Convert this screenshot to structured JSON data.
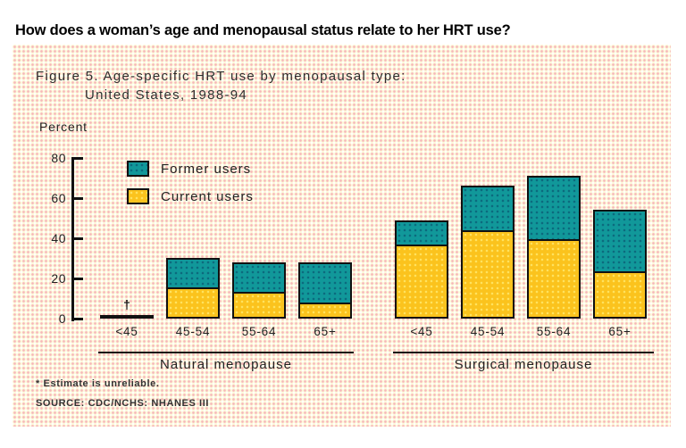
{
  "page": {
    "heading": "How does a woman’s age and menopausal status relate to her HRT use?"
  },
  "figure": {
    "title_line1": "Figure 5.  Age-specific HRT use by menopausal type:",
    "title_line2": "United States, 1988-94",
    "y_axis_title": "Percent",
    "unreliable_marker": "†",
    "footnote": "* Estimate is unreliable.",
    "source": "SOURCE: CDC/NCHS: NHANES III",
    "legend": [
      {
        "label": "Former users",
        "color": "#11989a"
      },
      {
        "label": "Current users",
        "color": "#fbc31d"
      }
    ],
    "colors": {
      "former_fill": "#11989a",
      "former_dot": "#0c6b7e",
      "current_fill": "#fbc31d",
      "current_dot": "#ffe25e",
      "box_background": "#fdf7d8",
      "box_dot": "#f6b2b8",
      "axis": "#111111"
    }
  },
  "chart_data": {
    "type": "bar",
    "stacked": true,
    "title": "Figure 5. Age-specific HRT use by menopausal type: United States, 1988-94",
    "ylabel": "Percent",
    "ylim": [
      0,
      80
    ],
    "yticks": [
      0,
      20,
      40,
      60,
      80
    ],
    "grid": false,
    "legend_position": "upper-left",
    "legend_entries": [
      "Former users",
      "Current users"
    ],
    "groups": [
      {
        "label": "Natural menopause",
        "categories": [
          "<45",
          "45-54",
          "55-64",
          "65+"
        ],
        "series": [
          {
            "name": "Current users",
            "values": [
              null,
              15,
              13,
              7
            ]
          },
          {
            "name": "Former users",
            "values": [
              null,
              15,
              15,
              21
            ]
          }
        ],
        "totals": [
          null,
          30,
          28,
          28
        ],
        "note": "<45 value suppressed: estimate is unreliable (†)"
      },
      {
        "label": "Surgical menopause",
        "categories": [
          "<45",
          "45-54",
          "55-64",
          "65+"
        ],
        "series": [
          {
            "name": "Current users",
            "values": [
              37,
              44,
              39,
              23
            ]
          },
          {
            "name": "Former users",
            "values": [
              12,
              22,
              32,
              31
            ]
          }
        ],
        "totals": [
          49,
          66,
          71,
          54
        ]
      }
    ]
  }
}
